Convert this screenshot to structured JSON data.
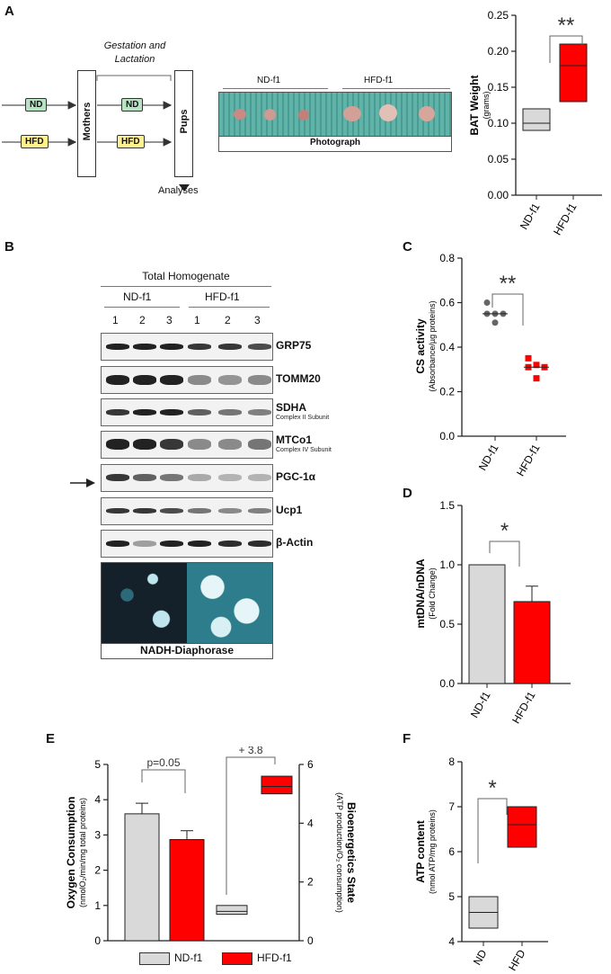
{
  "panels": {
    "a": "A",
    "b": "B",
    "c": "C",
    "d": "D",
    "e": "E",
    "f": "F"
  },
  "schematic": {
    "nd": "ND",
    "hfd": "HFD",
    "mothers": "Mothers",
    "pups": "Pups",
    "gestation": "Gestation and\nLactation",
    "analyses": "Analyses",
    "photo_nd": "ND-f1",
    "photo_hfd": "HFD-f1",
    "photograph": "Photograph"
  },
  "western": {
    "header": "Total Homogenate",
    "group_nd": "ND-f1",
    "group_hfd": "HFD-f1",
    "lanes": [
      "1",
      "2",
      "3",
      "1",
      "2",
      "3"
    ],
    "proteins": [
      {
        "name": "GRP75",
        "sub": ""
      },
      {
        "name": "TOMM20",
        "sub": ""
      },
      {
        "name": "SDHA",
        "sub": "Complex II Subunit"
      },
      {
        "name": "MTCo1",
        "sub": "Complex IV Subunit"
      },
      {
        "name": "PGC-1α",
        "sub": ""
      },
      {
        "name": "Ucp1",
        "sub": ""
      },
      {
        "name": "β-Actin",
        "sub": ""
      }
    ],
    "stain": "NADH-Diaphorase"
  },
  "colors": {
    "nd": "#d9d9d9",
    "hfd": "#ff0000",
    "nd_label": "#b7e3c4",
    "hfd_label": "#fff28c"
  },
  "chart_data": [
    {
      "id": "A",
      "type": "box",
      "categories": [
        "ND-f1",
        "HFD-f1"
      ],
      "boxes": [
        {
          "low": 0.09,
          "median": 0.1,
          "high": 0.12
        },
        {
          "low": 0.13,
          "median": 0.18,
          "high": 0.21
        }
      ],
      "ylabel": "BAT Weight",
      "ylabel_sub": "(grams)",
      "ylim": [
        0,
        0.25
      ],
      "yticks": [
        "0.00",
        "0.05",
        "0.10",
        "0.15",
        "0.20",
        "0.25"
      ],
      "significance": "**"
    },
    {
      "id": "C",
      "type": "scatter",
      "categories": [
        "ND-f1",
        "HFD-f1"
      ],
      "points": [
        [
          0.6,
          0.56,
          0.55,
          0.53,
          0.51
        ],
        [
          0.36,
          0.33,
          0.31,
          0.29,
          0.26
        ]
      ],
      "means": [
        0.55,
        0.31
      ],
      "ylabel": "CS activity",
      "ylabel_sub": "(Absorbance/µg proteins)",
      "ylim": [
        0,
        0.8
      ],
      "yticks": [
        "0.0",
        "0.2",
        "0.4",
        "0.6",
        "0.8"
      ],
      "significance": "**"
    },
    {
      "id": "D",
      "type": "bar",
      "categories": [
        "ND-f1",
        "HFD-f1"
      ],
      "values": [
        1.0,
        0.69
      ],
      "errors": [
        0,
        0.13
      ],
      "ylabel": "mtDNA/nDNA",
      "ylabel_sub": "(Fold Change)",
      "ylim": [
        0,
        1.5
      ],
      "yticks": [
        "0.0",
        "0.5",
        "1.0",
        "1.5"
      ],
      "significance": "*"
    },
    {
      "id": "E",
      "type": "bar+box",
      "bars": {
        "values": [
          3.6,
          2.87
        ],
        "errors": [
          0.3,
          0.25
        ]
      },
      "boxes": [
        {
          "low": 0.9,
          "median": 1.0,
          "high": 1.2
        },
        {
          "low": 5.0,
          "median": 5.25,
          "high": 5.6
        }
      ],
      "ylabel_left": "Oxygen Consumption",
      "ylabel_left_sub": "(nmolO₂/min/mg total proteins)",
      "ylabel_right": "Bioenergetics State",
      "ylabel_right_sub": "(ATP production/O₂ consumption)",
      "ylim_left": [
        0,
        5
      ],
      "yticks_left": [
        "0",
        "1",
        "2",
        "3",
        "4",
        "5"
      ],
      "ylim_right": [
        0,
        6
      ],
      "yticks_right": [
        "0",
        "2",
        "4",
        "6"
      ],
      "annot_left": "p=0.05",
      "annot_right": "+ 3.8",
      "legend": [
        "ND-f1",
        "HFD-f1"
      ]
    },
    {
      "id": "F",
      "type": "box",
      "categories": [
        "ND",
        "HFD"
      ],
      "boxes": [
        {
          "low": 4.3,
          "median": 4.65,
          "high": 5.0
        },
        {
          "low": 6.1,
          "median": 6.6,
          "high": 7.0
        }
      ],
      "ylabel": "ATP content",
      "ylabel_sub": "(nmol ATP/mg proteins)",
      "ylim": [
        4,
        8
      ],
      "yticks": [
        "4",
        "5",
        "6",
        "7",
        "8"
      ],
      "significance": "*"
    }
  ]
}
